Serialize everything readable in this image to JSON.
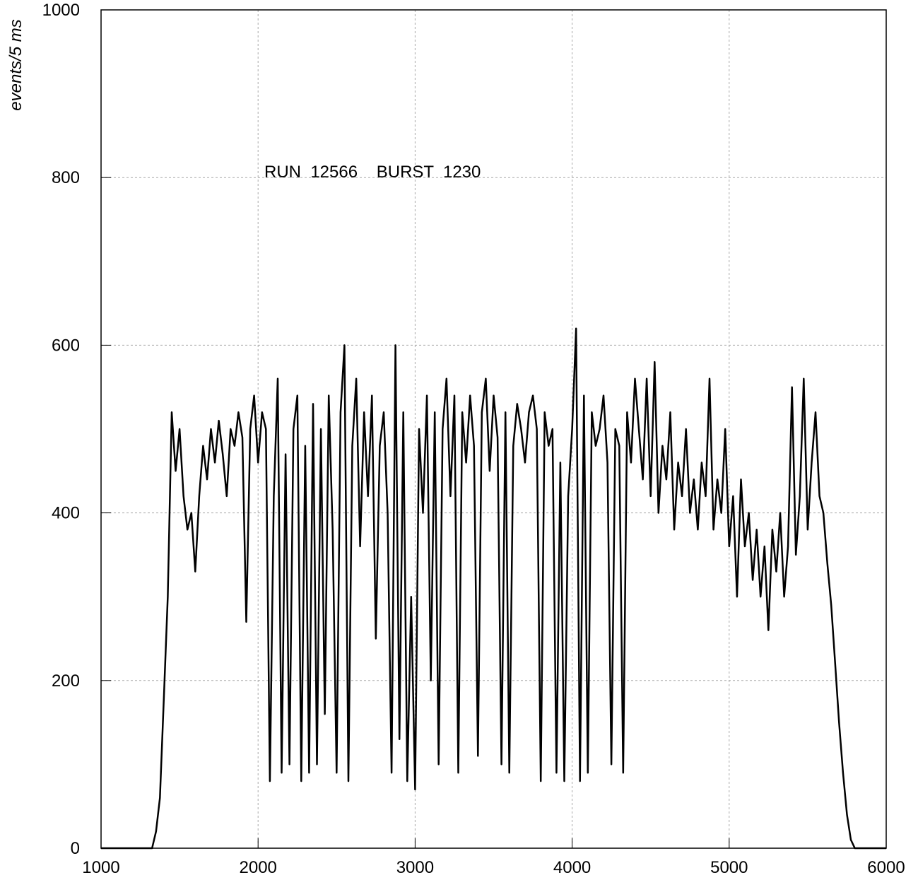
{
  "chart_data": {
    "type": "line",
    "y_label": "events/5 ms",
    "annotation": "RUN  12566    BURST  1230",
    "xlim": [
      1000,
      6000
    ],
    "xticks": [
      1000,
      2000,
      3000,
      4000,
      5000,
      6000
    ],
    "ylim": [
      0,
      1000
    ],
    "yticks": [
      0,
      200,
      400,
      600,
      800,
      1000
    ],
    "grid": true,
    "series": [
      {
        "color": "#000000",
        "x": [
          1000,
          1025,
          1050,
          1075,
          1100,
          1125,
          1150,
          1175,
          1200,
          1225,
          1250,
          1275,
          1300,
          1325,
          1350,
          1375,
          1400,
          1425,
          1450,
          1475,
          1500,
          1525,
          1550,
          1575,
          1600,
          1625,
          1650,
          1675,
          1700,
          1725,
          1750,
          1775,
          1800,
          1825,
          1850,
          1875,
          1900,
          1925,
          1950,
          1975,
          2000,
          2025,
          2050,
          2075,
          2100,
          2125,
          2150,
          2175,
          2200,
          2225,
          2250,
          2275,
          2300,
          2325,
          2350,
          2375,
          2400,
          2425,
          2450,
          2475,
          2500,
          2525,
          2550,
          2575,
          2600,
          2625,
          2650,
          2675,
          2700,
          2725,
          2750,
          2775,
          2800,
          2825,
          2850,
          2875,
          2900,
          2925,
          2950,
          2975,
          3000,
          3025,
          3050,
          3075,
          3100,
          3125,
          3150,
          3175,
          3200,
          3225,
          3250,
          3275,
          3300,
          3325,
          3350,
          3375,
          3400,
          3425,
          3450,
          3475,
          3500,
          3525,
          3550,
          3575,
          3600,
          3625,
          3650,
          3675,
          3700,
          3725,
          3750,
          3775,
          3800,
          3825,
          3850,
          3875,
          3900,
          3925,
          3950,
          3975,
          4000,
          4025,
          4050,
          4075,
          4100,
          4125,
          4150,
          4175,
          4200,
          4225,
          4250,
          4275,
          4300,
          4325,
          4350,
          4375,
          4400,
          4425,
          4450,
          4475,
          4500,
          4525,
          4550,
          4575,
          4600,
          4625,
          4650,
          4675,
          4700,
          4725,
          4750,
          4775,
          4800,
          4825,
          4850,
          4875,
          4900,
          4925,
          4950,
          4975,
          5000,
          5025,
          5050,
          5075,
          5100,
          5125,
          5150,
          5175,
          5200,
          5225,
          5250,
          5275,
          5300,
          5325,
          5350,
          5375,
          5400,
          5425,
          5450,
          5475,
          5500,
          5525,
          5550,
          5575,
          5600,
          5625,
          5650,
          5675,
          5700,
          5725,
          5750,
          5775,
          5800,
          5825,
          5850,
          5875,
          5900,
          5925,
          5950,
          5975,
          6000
        ],
        "values": [
          0,
          0,
          0,
          0,
          0,
          0,
          0,
          0,
          0,
          0,
          0,
          0,
          0,
          0,
          20,
          60,
          180,
          300,
          520,
          450,
          500,
          420,
          380,
          400,
          330,
          420,
          480,
          440,
          500,
          460,
          510,
          470,
          420,
          500,
          480,
          520,
          490,
          270,
          500,
          540,
          460,
          520,
          500,
          80,
          420,
          560,
          90,
          470,
          100,
          500,
          540,
          80,
          480,
          90,
          530,
          100,
          500,
          160,
          540,
          380,
          90,
          520,
          600,
          80,
          480,
          560,
          360,
          520,
          420,
          540,
          250,
          480,
          520,
          400,
          90,
          600,
          130,
          520,
          80,
          300,
          70,
          500,
          400,
          540,
          200,
          520,
          100,
          500,
          560,
          420,
          540,
          90,
          520,
          460,
          540,
          480,
          110,
          520,
          560,
          450,
          540,
          490,
          100,
          520,
          90,
          480,
          530,
          500,
          460,
          520,
          540,
          500,
          80,
          520,
          480,
          500,
          90,
          460,
          80,
          420,
          500,
          620,
          80,
          540,
          90,
          520,
          480,
          500,
          540,
          460,
          100,
          500,
          480,
          90,
          520,
          460,
          560,
          500,
          440,
          560,
          420,
          580,
          400,
          480,
          440,
          520,
          380,
          460,
          420,
          500,
          400,
          440,
          380,
          460,
          420,
          560,
          380,
          440,
          400,
          500,
          360,
          420,
          300,
          440,
          360,
          400,
          320,
          380,
          300,
          360,
          260,
          380,
          330,
          400,
          300,
          360,
          550,
          350,
          420,
          560,
          380,
          460,
          520,
          420,
          400,
          340,
          290,
          220,
          150,
          90,
          40,
          10,
          0,
          0,
          0,
          0,
          0,
          0,
          0,
          0,
          0
        ]
      }
    ]
  }
}
